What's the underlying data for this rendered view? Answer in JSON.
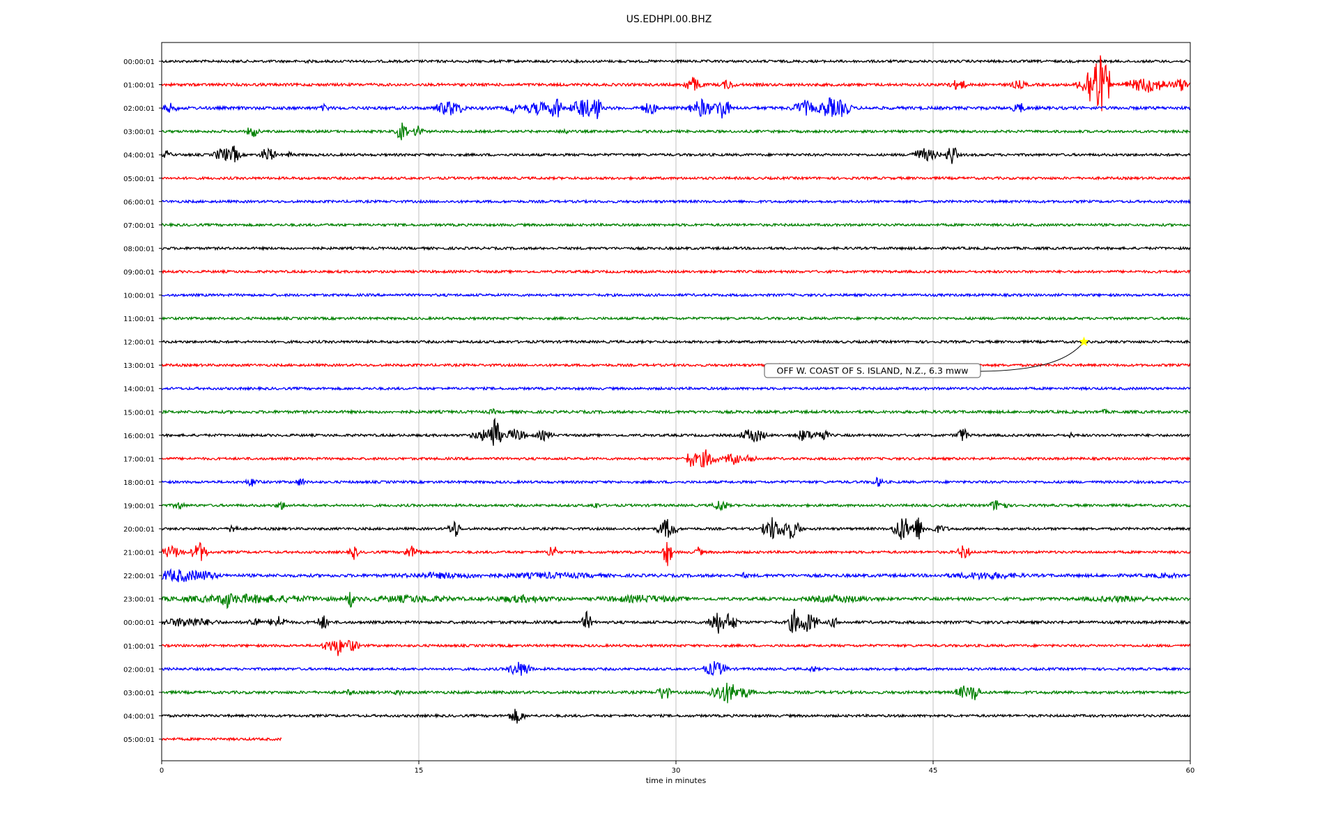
{
  "chart_data": {
    "type": "line",
    "title": "US.EDHPI.00.BHZ",
    "xlabel": "time in minutes",
    "ylabel": "",
    "xlim": [
      0,
      60
    ],
    "x_ticks": [
      0,
      15,
      30,
      45,
      60
    ],
    "grid_x": true,
    "colors": [
      "#000000",
      "#ff0000",
      "#0000ff",
      "#008000"
    ],
    "series": [
      {
        "label": "00:00:01",
        "color": "#000000",
        "start": 0,
        "end": 60,
        "noise": 1.8,
        "events": [
          [
            8.5,
            3,
            0.3
          ]
        ]
      },
      {
        "label": "01:00:01",
        "color": "#ff0000",
        "start": 0,
        "end": 60,
        "noise": 2.0,
        "events": [
          [
            31,
            12,
            0.6
          ],
          [
            33,
            8,
            0.5
          ],
          [
            45.8,
            6,
            0.3
          ],
          [
            46.5,
            10,
            0.5
          ],
          [
            50,
            7,
            0.6
          ],
          [
            54,
            14,
            0.7
          ],
          [
            54.6,
            50,
            0.8
          ],
          [
            57.5,
            12,
            1.5
          ],
          [
            59.5,
            10,
            0.6
          ]
        ]
      },
      {
        "label": "02:00:01",
        "color": "#0000ff",
        "start": 0,
        "end": 60,
        "noise": 2.2,
        "events": [
          [
            0.5,
            8,
            0.5
          ],
          [
            9.5,
            6,
            0.4
          ],
          [
            16.8,
            12,
            1.0
          ],
          [
            20.5,
            8,
            0.5
          ],
          [
            22,
            10,
            1.2
          ],
          [
            23,
            20,
            0.4
          ],
          [
            24.6,
            16,
            0.8
          ],
          [
            25.3,
            22,
            0.4
          ],
          [
            28.5,
            10,
            0.6
          ],
          [
            31.5,
            14,
            0.8
          ],
          [
            32.7,
            18,
            0.5
          ],
          [
            37.5,
            12,
            0.8
          ],
          [
            39,
            16,
            0.8
          ],
          [
            39.7,
            14,
            0.6
          ],
          [
            50,
            10,
            0.4
          ]
        ]
      },
      {
        "label": "03:00:01",
        "color": "#008000",
        "start": 0,
        "end": 60,
        "noise": 1.8,
        "events": [
          [
            5.3,
            10,
            0.4
          ],
          [
            14,
            14,
            0.4
          ],
          [
            15,
            12,
            0.3
          ],
          [
            23.5,
            6,
            0.3
          ]
        ]
      },
      {
        "label": "04:00:01",
        "color": "#000000",
        "start": 0,
        "end": 60,
        "noise": 1.8,
        "events": [
          [
            0.3,
            7,
            0.3
          ],
          [
            3.6,
            12,
            0.6
          ],
          [
            4.2,
            14,
            0.4
          ],
          [
            6.2,
            12,
            0.5
          ],
          [
            7.5,
            5,
            0.3
          ],
          [
            44.5,
            10,
            1.0
          ],
          [
            46.1,
            16,
            0.4
          ]
        ]
      },
      {
        "label": "05:00:01",
        "color": "#ff0000",
        "start": 0,
        "end": 60,
        "noise": 1.8,
        "events": []
      },
      {
        "label": "06:00:01",
        "color": "#0000ff",
        "start": 0,
        "end": 60,
        "noise": 1.8,
        "events": []
      },
      {
        "label": "07:00:01",
        "color": "#008000",
        "start": 0,
        "end": 60,
        "noise": 1.8,
        "events": []
      },
      {
        "label": "08:00:01",
        "color": "#000000",
        "start": 0,
        "end": 60,
        "noise": 1.8,
        "events": []
      },
      {
        "label": "09:00:01",
        "color": "#ff0000",
        "start": 0,
        "end": 60,
        "noise": 1.8,
        "events": []
      },
      {
        "label": "10:00:01",
        "color": "#0000ff",
        "start": 0,
        "end": 60,
        "noise": 1.8,
        "events": []
      },
      {
        "label": "11:00:01",
        "color": "#008000",
        "start": 0,
        "end": 60,
        "noise": 1.8,
        "events": []
      },
      {
        "label": "12:00:01",
        "color": "#000000",
        "start": 0,
        "end": 60,
        "noise": 1.8,
        "events": []
      },
      {
        "label": "13:00:01",
        "color": "#ff0000",
        "start": 0,
        "end": 60,
        "noise": 1.8,
        "events": []
      },
      {
        "label": "14:00:01",
        "color": "#0000ff",
        "start": 0,
        "end": 60,
        "noise": 1.8,
        "events": []
      },
      {
        "label": "15:00:01",
        "color": "#008000",
        "start": 0,
        "end": 60,
        "noise": 2.0,
        "events": [
          [
            19.3,
            5,
            0.3
          ],
          [
            55,
            4,
            0.3
          ]
        ]
      },
      {
        "label": "16:00:01",
        "color": "#000000",
        "start": 0,
        "end": 60,
        "noise": 1.8,
        "events": [
          [
            19,
            10,
            1.0
          ],
          [
            19.4,
            28,
            0.4
          ],
          [
            20.6,
            10,
            0.8
          ],
          [
            22.3,
            8,
            0.6
          ],
          [
            34.5,
            12,
            0.8
          ],
          [
            37.5,
            10,
            0.6
          ],
          [
            38.5,
            10,
            0.5
          ],
          [
            46.7,
            12,
            0.4
          ],
          [
            53,
            5,
            0.3
          ]
        ]
      },
      {
        "label": "17:00:01",
        "color": "#ff0000",
        "start": 0,
        "end": 60,
        "noise": 1.8,
        "events": [
          [
            30.9,
            14,
            0.4
          ],
          [
            31.7,
            14,
            0.8
          ],
          [
            33.3,
            10,
            0.6
          ],
          [
            34.4,
            8,
            0.4
          ]
        ]
      },
      {
        "label": "18:00:01",
        "color": "#0000ff",
        "start": 0,
        "end": 60,
        "noise": 1.8,
        "events": [
          [
            5.3,
            7,
            0.5
          ],
          [
            8.1,
            7,
            0.4
          ],
          [
            41.8,
            8,
            0.4
          ]
        ]
      },
      {
        "label": "19:00:01",
        "color": "#008000",
        "start": 0,
        "end": 60,
        "noise": 1.8,
        "events": [
          [
            1,
            7,
            0.4
          ],
          [
            7,
            7,
            0.4
          ],
          [
            25.3,
            6,
            0.3
          ],
          [
            32.6,
            10,
            0.5
          ],
          [
            48.8,
            10,
            0.6
          ]
        ]
      },
      {
        "label": "20:00:01",
        "color": "#000000",
        "start": 0,
        "end": 60,
        "noise": 1.8,
        "events": [
          [
            4.2,
            10,
            0.3
          ],
          [
            17.1,
            14,
            0.4
          ],
          [
            29.5,
            16,
            0.6
          ],
          [
            35.6,
            18,
            0.6
          ],
          [
            36.6,
            16,
            0.8
          ],
          [
            43.2,
            20,
            0.6
          ],
          [
            44.1,
            20,
            0.4
          ],
          [
            45.3,
            6,
            0.8
          ]
        ]
      },
      {
        "label": "21:00:01",
        "color": "#ff0000",
        "start": 0,
        "end": 60,
        "noise": 1.8,
        "events": [
          [
            0.6,
            10,
            0.8
          ],
          [
            2.2,
            16,
            0.5
          ],
          [
            11.2,
            12,
            0.3
          ],
          [
            14.6,
            10,
            0.6
          ],
          [
            22.8,
            14,
            0.3
          ],
          [
            29.5,
            22,
            0.3
          ],
          [
            31.3,
            8,
            0.3
          ],
          [
            46.8,
            12,
            0.4
          ]
        ]
      },
      {
        "label": "22:00:01",
        "color": "#0000ff",
        "start": 0,
        "end": 60,
        "noise": 2.2,
        "events": [
          [
            1,
            10,
            2.5
          ],
          [
            2.5,
            8,
            1.0
          ],
          [
            15.6,
            6,
            0.3
          ],
          [
            16.5,
            5,
            4.0
          ],
          [
            22.5,
            5,
            5.0
          ],
          [
            34,
            5,
            0.3
          ],
          [
            48,
            6,
            3.0
          ],
          [
            58.5,
            4,
            2.0
          ]
        ]
      },
      {
        "label": "23:00:01",
        "color": "#008000",
        "start": 0,
        "end": 60,
        "noise": 2.2,
        "events": [
          [
            3.8,
            16,
            0.4
          ],
          [
            5,
            7,
            6.0
          ],
          [
            11,
            14,
            0.3
          ],
          [
            14.5,
            6,
            4.0
          ],
          [
            21,
            6,
            3.0
          ],
          [
            28,
            6,
            3.5
          ],
          [
            39.5,
            6,
            3.0
          ],
          [
            56,
            5,
            3.5
          ]
        ]
      },
      {
        "label": "00:00:01",
        "color": "#000000",
        "start": 0,
        "end": 60,
        "noise": 2.0,
        "events": [
          [
            1.5,
            8,
            2.0
          ],
          [
            5.4,
            10,
            0.4
          ],
          [
            6.8,
            10,
            0.6
          ],
          [
            9.4,
            12,
            0.4
          ],
          [
            24.8,
            16,
            0.3
          ],
          [
            32.4,
            18,
            0.6
          ],
          [
            33.1,
            14,
            0.6
          ],
          [
            36.9,
            20,
            0.4
          ],
          [
            37.6,
            16,
            0.8
          ],
          [
            39.2,
            8,
            0.4
          ]
        ]
      },
      {
        "label": "01:00:01",
        "color": "#ff0000",
        "start": 0,
        "end": 60,
        "noise": 1.8,
        "events": [
          [
            9.8,
            10,
            0.5
          ],
          [
            10.3,
            16,
            0.3
          ],
          [
            11,
            10,
            0.6
          ]
        ]
      },
      {
        "label": "02:00:01",
        "color": "#0000ff",
        "start": 0,
        "end": 60,
        "noise": 1.8,
        "events": [
          [
            20.9,
            12,
            0.8
          ],
          [
            32.3,
            12,
            0.8
          ],
          [
            38,
            6,
            0.3
          ]
        ]
      },
      {
        "label": "03:00:01",
        "color": "#008000",
        "start": 0,
        "end": 60,
        "noise": 2.0,
        "events": [
          [
            11,
            6,
            0.3
          ],
          [
            13.8,
            6,
            0.3
          ],
          [
            29.3,
            14,
            0.4
          ],
          [
            33,
            16,
            1.2
          ],
          [
            34.1,
            8,
            0.5
          ],
          [
            46.8,
            10,
            0.6
          ],
          [
            47.4,
            14,
            0.4
          ]
        ]
      },
      {
        "label": "04:00:01",
        "color": "#000000",
        "start": 0,
        "end": 60,
        "noise": 1.8,
        "events": [
          [
            20.7,
            12,
            0.5
          ]
        ]
      },
      {
        "label": "05:00:01",
        "color": "#ff0000",
        "start": 0,
        "end": 7,
        "noise": 1.8,
        "events": []
      }
    ],
    "annotation": {
      "text": "OFF W. COAST OF S. ISLAND, N.Z., 6.3 mww",
      "row": 12,
      "x": 53.8,
      "marker": "star",
      "marker_color": "#ffff00"
    }
  }
}
